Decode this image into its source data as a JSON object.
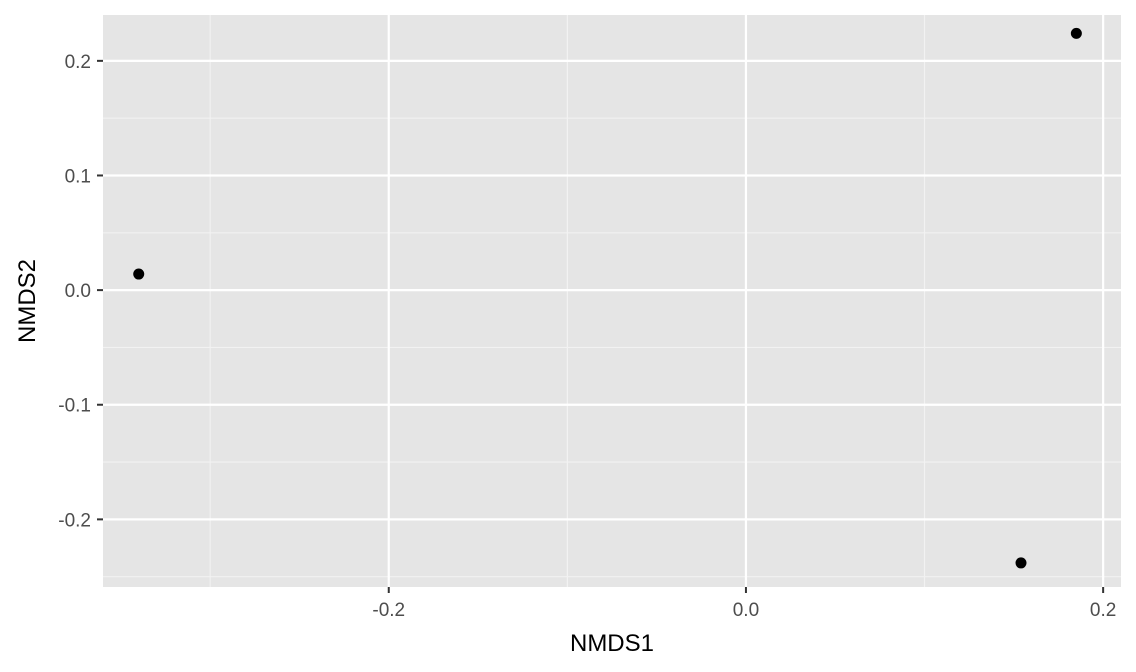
{
  "chart_data": {
    "type": "scatter",
    "title": "",
    "xlabel": "NMDS1",
    "ylabel": "NMDS2",
    "xlim": [
      -0.36,
      0.21
    ],
    "ylim": [
      -0.259,
      0.24
    ],
    "x_ticks": [
      -0.2,
      0.0,
      0.2
    ],
    "x_tick_labels": [
      "-0.2",
      "0.0",
      "0.2"
    ],
    "x_minor_ticks": [
      -0.3,
      -0.1,
      0.1
    ],
    "y_ticks": [
      -0.2,
      -0.1,
      0.0,
      0.1,
      0.2
    ],
    "y_tick_labels": [
      "-0.2",
      "-0.1",
      "0.0",
      "0.1",
      "0.2"
    ],
    "y_minor_ticks": [
      -0.25,
      -0.15,
      -0.05,
      0.05,
      0.15
    ],
    "grid": true,
    "legend": "none",
    "colors": {
      "panel_background": "#e5e5e5",
      "grid_major": "#ffffff",
      "grid_minor": "#f2f2f2",
      "point": "#000000",
      "tick": "#333333"
    },
    "points": [
      {
        "x": -0.34,
        "y": 0.014
      },
      {
        "x": 0.185,
        "y": 0.224
      },
      {
        "x": 0.154,
        "y": -0.238
      }
    ]
  }
}
